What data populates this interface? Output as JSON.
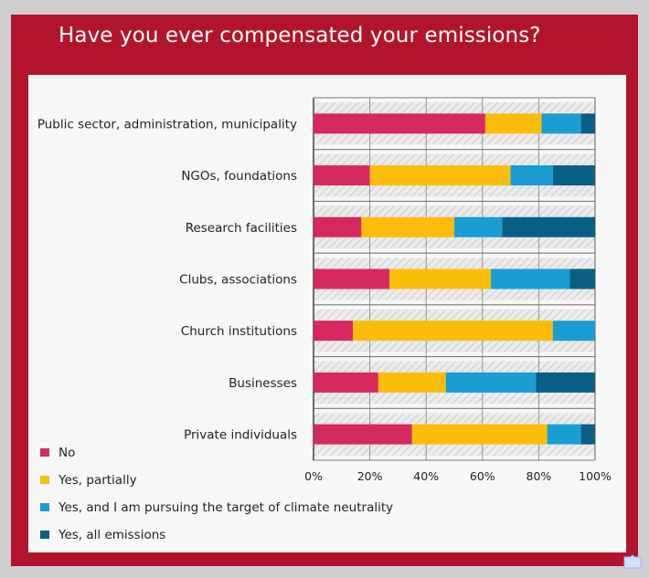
{
  "chart_data": {
    "type": "bar",
    "orientation": "horizontal",
    "stacked": true,
    "title": "Have you ever compensated your emissions?",
    "categories": [
      "Public sector, administration, municipality",
      "NGOs, foundations",
      "Research facilities",
      "Clubs, associations",
      "Church institutions",
      "Businesses",
      "Private individuals"
    ],
    "series": [
      {
        "name": "No",
        "color": "#d6295e",
        "values": [
          61,
          20,
          17,
          27,
          14,
          23,
          35
        ]
      },
      {
        "name": "Yes, partially",
        "color": "#fbbd0a",
        "values": [
          20,
          50,
          33,
          36,
          71,
          24,
          48
        ]
      },
      {
        "name": "Yes, and I am pursuing the target of climate neutrality",
        "color": "#1a9dd3",
        "values": [
          14,
          15,
          17,
          28,
          15,
          32,
          12
        ]
      },
      {
        "name": "Yes, all emissions",
        "color": "#0a5f85",
        "values": [
          5,
          15,
          33,
          9,
          0,
          21,
          5
        ]
      }
    ],
    "xlim": [
      0,
      100
    ],
    "xticks": [
      "0%",
      "20%",
      "40%",
      "60%",
      "80%",
      "100%"
    ],
    "grid": true,
    "legend_position": "bottom-left"
  }
}
